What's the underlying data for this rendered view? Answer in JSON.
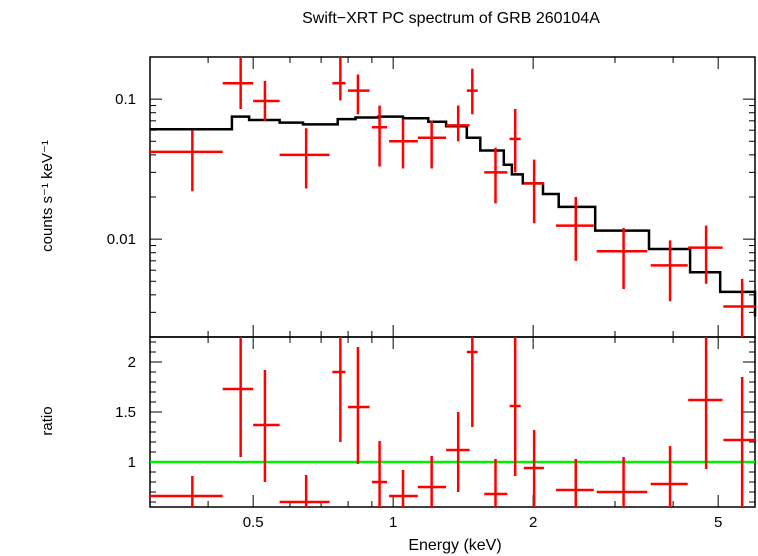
{
  "chart_data": [
    {
      "type": "scatter",
      "panel": "spectrum",
      "title": "Swift−XRT PC spectrum of GRB 260104A",
      "xlabel": "Energy (keV)",
      "ylabel": "counts s⁻¹ keV⁻¹",
      "xscale": "log",
      "yscale": "log",
      "xlim": [
        0.3,
        6.0
      ],
      "ylim": [
        0.002,
        0.2
      ],
      "yticks": [
        {
          "value": 0.1,
          "label": "0.1"
        },
        {
          "value": 0.01,
          "label": "0.01"
        }
      ],
      "series": [
        {
          "name": "data",
          "color": "#ff0000",
          "points": [
            {
              "x": 0.37,
              "xlo": 0.3,
              "xhi": 0.43,
              "y": 0.042,
              "ylo": 0.022,
              "yhi": 0.06
            },
            {
              "x": 0.47,
              "xlo": 0.43,
              "xhi": 0.5,
              "y": 0.13,
              "ylo": 0.085,
              "yhi": 0.2
            },
            {
              "x": 0.53,
              "xlo": 0.5,
              "xhi": 0.57,
              "y": 0.097,
              "ylo": 0.07,
              "yhi": 0.135
            },
            {
              "x": 0.65,
              "xlo": 0.57,
              "xhi": 0.73,
              "y": 0.04,
              "ylo": 0.023,
              "yhi": 0.062
            },
            {
              "x": 0.77,
              "xlo": 0.74,
              "xhi": 0.79,
              "y": 0.13,
              "ylo": 0.098,
              "yhi": 0.2
            },
            {
              "x": 0.84,
              "xlo": 0.8,
              "xhi": 0.89,
              "y": 0.115,
              "ylo": 0.078,
              "yhi": 0.15
            },
            {
              "x": 0.935,
              "xlo": 0.9,
              "xhi": 0.97,
              "y": 0.063,
              "ylo": 0.033,
              "yhi": 0.09
            },
            {
              "x": 1.05,
              "xlo": 0.98,
              "xhi": 1.13,
              "y": 0.05,
              "ylo": 0.032,
              "yhi": 0.072
            },
            {
              "x": 1.21,
              "xlo": 1.13,
              "xhi": 1.3,
              "y": 0.053,
              "ylo": 0.032,
              "yhi": 0.07
            },
            {
              "x": 1.38,
              "xlo": 1.3,
              "xhi": 1.46,
              "y": 0.065,
              "ylo": 0.05,
              "yhi": 0.09
            },
            {
              "x": 1.48,
              "xlo": 1.44,
              "xhi": 1.52,
              "y": 0.115,
              "ylo": 0.078,
              "yhi": 0.165
            },
            {
              "x": 1.66,
              "xlo": 1.57,
              "xhi": 1.76,
              "y": 0.03,
              "ylo": 0.018,
              "yhi": 0.045
            },
            {
              "x": 1.83,
              "xlo": 1.78,
              "xhi": 1.88,
              "y": 0.052,
              "ylo": 0.03,
              "yhi": 0.085
            },
            {
              "x": 2.01,
              "xlo": 1.91,
              "xhi": 2.11,
              "y": 0.025,
              "ylo": 0.013,
              "yhi": 0.037
            },
            {
              "x": 2.47,
              "xlo": 2.24,
              "xhi": 2.7,
              "y": 0.0125,
              "ylo": 0.007,
              "yhi": 0.02
            },
            {
              "x": 3.13,
              "xlo": 2.74,
              "xhi": 3.52,
              "y": 0.0082,
              "ylo": 0.0044,
              "yhi": 0.012
            },
            {
              "x": 3.94,
              "xlo": 3.58,
              "xhi": 4.3,
              "y": 0.0065,
              "ylo": 0.0036,
              "yhi": 0.0098
            },
            {
              "x": 4.71,
              "xlo": 4.31,
              "xhi": 5.11,
              "y": 0.0087,
              "ylo": 0.0048,
              "yhi": 0.0125
            },
            {
              "x": 5.63,
              "xlo": 5.13,
              "xhi": 6.0,
              "y": 0.0033,
              "ylo": 0.002,
              "yhi": 0.0052
            }
          ]
        },
        {
          "name": "model",
          "color": "#000000",
          "step_x": [
            0.3,
            0.45,
            0.49,
            0.57,
            0.64,
            0.76,
            0.83,
            0.93,
            1.05,
            1.19,
            1.3,
            1.44,
            1.54,
            1.73,
            1.8,
            1.9,
            2.1,
            2.27,
            2.72,
            3.55,
            4.35,
            5.05,
            6.0
          ],
          "step_y": [
            0.061,
            0.075,
            0.071,
            0.068,
            0.066,
            0.072,
            0.074,
            0.075,
            0.073,
            0.069,
            0.064,
            0.053,
            0.043,
            0.034,
            0.029,
            0.025,
            0.021,
            0.017,
            0.0115,
            0.0085,
            0.0058,
            0.0042,
            0.0028
          ]
        }
      ]
    },
    {
      "type": "scatter",
      "panel": "ratio",
      "xlabel": "Energy (keV)",
      "ylabel": "ratio",
      "xscale": "log",
      "yscale": "linear",
      "xlim": [
        0.3,
        6.0
      ],
      "ylim": [
        0.55,
        2.25
      ],
      "xticks": [
        {
          "value": 0.5,
          "label": "0.5"
        },
        {
          "value": 1,
          "label": "1"
        },
        {
          "value": 2,
          "label": "2"
        },
        {
          "value": 5,
          "label": "5"
        }
      ],
      "yticks": [
        {
          "value": 1,
          "label": "1"
        },
        {
          "value": 1.5,
          "label": "1.5"
        },
        {
          "value": 2,
          "label": "2"
        }
      ],
      "reference_line": {
        "y": 1,
        "color": "#00ee00"
      },
      "series": [
        {
          "name": "ratio",
          "color": "#ff0000",
          "points": [
            {
              "x": 0.37,
              "xlo": 0.3,
              "xhi": 0.43,
              "y": 0.66,
              "ylo": 0.55,
              "yhi": 0.86
            },
            {
              "x": 0.47,
              "xlo": 0.43,
              "xhi": 0.5,
              "y": 1.73,
              "ylo": 1.05,
              "yhi": 2.25
            },
            {
              "x": 0.53,
              "xlo": 0.5,
              "xhi": 0.57,
              "y": 1.37,
              "ylo": 0.8,
              "yhi": 1.92
            },
            {
              "x": 0.65,
              "xlo": 0.57,
              "xhi": 0.73,
              "y": 0.6,
              "ylo": 0.55,
              "yhi": 0.87
            },
            {
              "x": 0.77,
              "xlo": 0.74,
              "xhi": 0.79,
              "y": 1.9,
              "ylo": 1.2,
              "yhi": 2.25
            },
            {
              "x": 0.84,
              "xlo": 0.8,
              "xhi": 0.89,
              "y": 1.55,
              "ylo": 0.98,
              "yhi": 2.15
            },
            {
              "x": 0.935,
              "xlo": 0.9,
              "xhi": 0.97,
              "y": 0.8,
              "ylo": 0.55,
              "yhi": 1.21
            },
            {
              "x": 1.05,
              "xlo": 0.98,
              "xhi": 1.13,
              "y": 0.66,
              "ylo": 0.55,
              "yhi": 0.92
            },
            {
              "x": 1.21,
              "xlo": 1.13,
              "xhi": 1.3,
              "y": 0.75,
              "ylo": 0.55,
              "yhi": 1.06
            },
            {
              "x": 1.38,
              "xlo": 1.3,
              "xhi": 1.46,
              "y": 1.12,
              "ylo": 0.7,
              "yhi": 1.5
            },
            {
              "x": 1.48,
              "xlo": 1.44,
              "xhi": 1.52,
              "y": 2.1,
              "ylo": 1.35,
              "yhi": 2.25
            },
            {
              "x": 1.66,
              "xlo": 1.57,
              "xhi": 1.76,
              "y": 0.68,
              "ylo": 0.55,
              "yhi": 1.03
            },
            {
              "x": 1.83,
              "xlo": 1.78,
              "xhi": 1.88,
              "y": 1.56,
              "ylo": 0.86,
              "yhi": 2.25
            },
            {
              "x": 2.01,
              "xlo": 1.91,
              "xhi": 2.11,
              "y": 0.94,
              "ylo": 0.55,
              "yhi": 1.32
            },
            {
              "x": 2.47,
              "xlo": 2.24,
              "xhi": 2.7,
              "y": 0.72,
              "ylo": 0.55,
              "yhi": 1.03
            },
            {
              "x": 3.13,
              "xlo": 2.74,
              "xhi": 3.52,
              "y": 0.7,
              "ylo": 0.55,
              "yhi": 1.05
            },
            {
              "x": 3.94,
              "xlo": 3.58,
              "xhi": 4.3,
              "y": 0.78,
              "ylo": 0.55,
              "yhi": 1.16
            },
            {
              "x": 4.71,
              "xlo": 4.31,
              "xhi": 5.11,
              "y": 1.62,
              "ylo": 0.93,
              "yhi": 2.25
            },
            {
              "x": 5.63,
              "xlo": 5.13,
              "xhi": 6.0,
              "y": 1.22,
              "ylo": 0.55,
              "yhi": 1.85
            }
          ]
        }
      ]
    }
  ]
}
